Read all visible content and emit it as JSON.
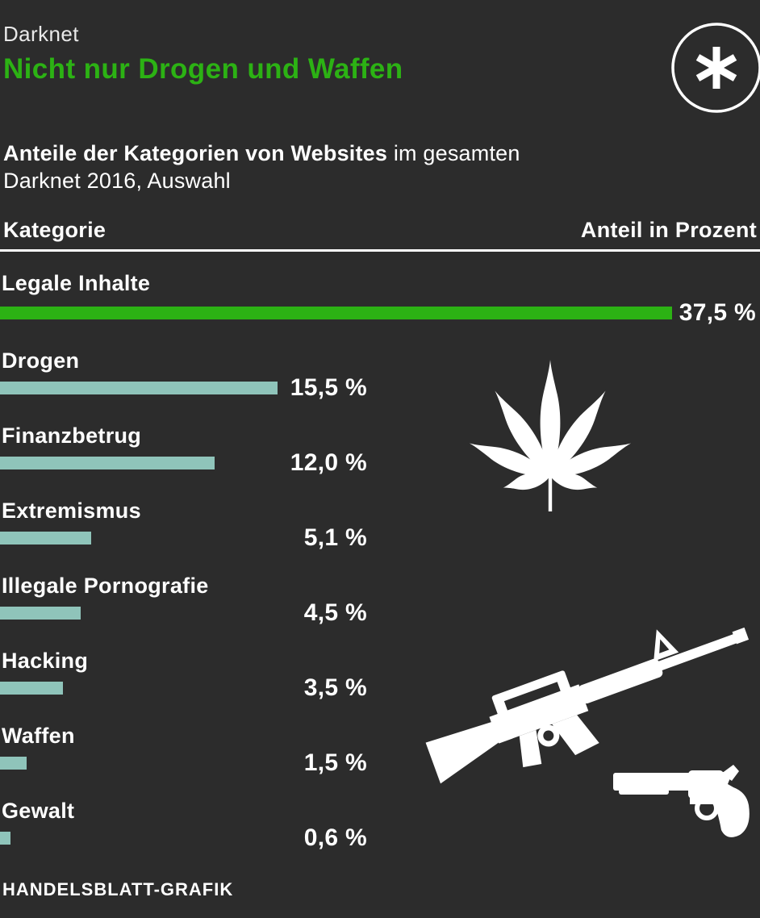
{
  "colors": {
    "background": "#2c2c2c",
    "accent_green": "#2cb214",
    "bar_teal": "#8fc4ba",
    "text_white": "#ffffff",
    "kicker_gray": "#e9e9e9"
  },
  "header": {
    "kicker": "Darknet",
    "title": "Nicht nur Drogen und Waffen"
  },
  "subtitle": {
    "bold": "Anteile der Kategorien von Websites",
    "regular": " im gesamten",
    "line2": "Darknet 2016, Auswahl"
  },
  "table_header": {
    "category": "Kategorie",
    "value": "Anteil in Prozent"
  },
  "chart_data": {
    "type": "bar",
    "orientation": "horizontal",
    "title": "Anteile der Kategorien von Websites im gesamten Darknet 2016, Auswahl",
    "categories": [
      "Legale Inhalte",
      "Drogen",
      "Finanzbetrug",
      "Extremismus",
      "Illegale Pornografie",
      "Hacking",
      "Waffen",
      "Gewalt"
    ],
    "values": [
      37.5,
      15.5,
      12.0,
      5.1,
      4.5,
      3.5,
      1.5,
      0.6
    ],
    "value_labels": [
      "37,5 %",
      "15,5 %",
      "12,0 %",
      "5,1 %",
      "4,5 %",
      "3,5 %",
      "1,5 %",
      "0,6 %"
    ],
    "unit": "percent",
    "xlim": [
      0,
      37.5
    ],
    "highlight_index": 0,
    "highlight_color": "#2cb214",
    "default_color": "#8fc4ba",
    "grid": false,
    "legend": false
  },
  "icons": {
    "badge": "asterisk-icon",
    "drugs": "cannabis-leaf-icon",
    "weapons_rifle": "rifle-icon",
    "weapons_revolver": "revolver-icon"
  },
  "footer": {
    "credit": "HANDELSBLATT-GRAFIK"
  }
}
